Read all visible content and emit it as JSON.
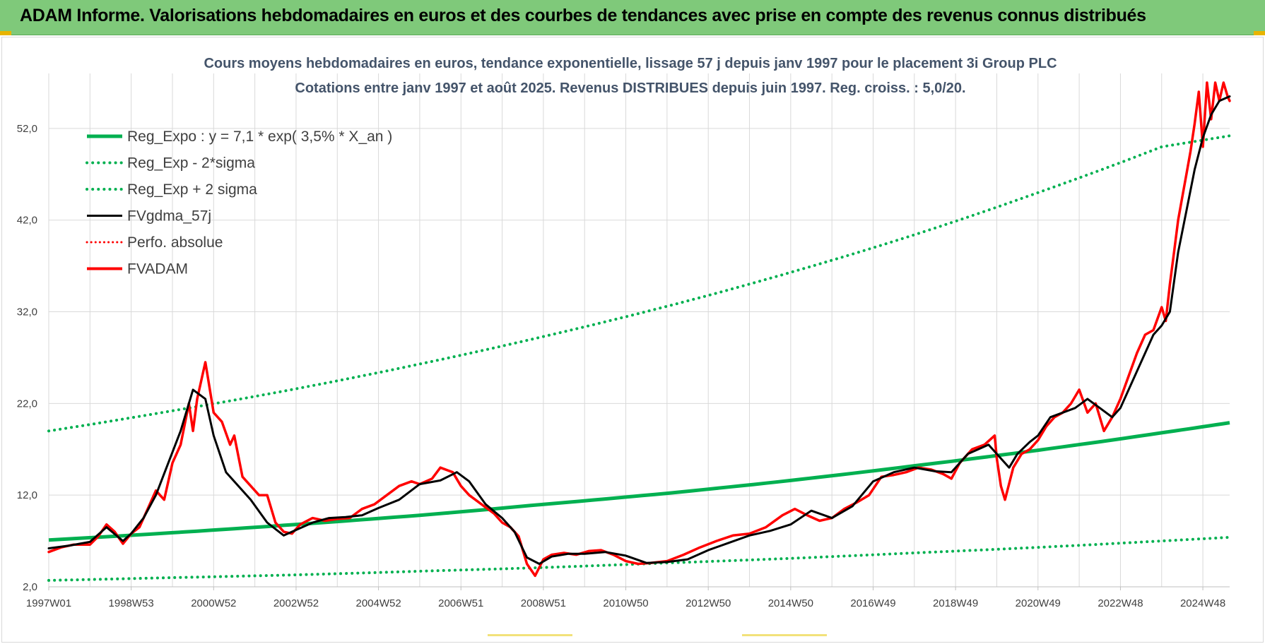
{
  "banner": {
    "title": "ADAM Informe. Valorisations hebdomadaires en euros et des courbes de tendances avec prise en compte des revenus connus distribués"
  },
  "colors": {
    "banner_bg": "#7fc97a",
    "reg_expo": "#00b050",
    "fvgdma": "#000000",
    "fvadam": "#ff0000",
    "perfo": "#ff0000",
    "grid": "#d9d9d9",
    "title": "#44546a"
  },
  "chart_data": {
    "type": "line",
    "title": [
      "Cours moyens hebdomadaires en euros, tendance exponentielle, lissage 57 j depuis janv 1997 pour le placement 3i Group PLC",
      "Cotations entre janv 1997 et août 2025. Revenus DISTRIBUES depuis juin 1997. Reg. croiss. : 5,0/20."
    ],
    "xlabel": "",
    "ylabel": "",
    "x_range": [
      1997.0,
      2025.65
    ],
    "ylim": [
      2,
      58
    ],
    "y_ticks": [
      2,
      12,
      22,
      32,
      42,
      52
    ],
    "y_tick_labels": [
      "2,0",
      "12,0",
      "22,0",
      "32,0",
      "42,0",
      "52,0"
    ],
    "x_ticks": [
      1997.0,
      1999.0,
      2001.0,
      2003.0,
      2005.0,
      2007.0,
      2009.0,
      2011.0,
      2013.0,
      2015.0,
      2017.0,
      2019.0,
      2021.0,
      2023.0,
      2025.0
    ],
    "x_tick_labels": [
      "1997W01",
      "1998W53",
      "2000W52",
      "2002W52",
      "2004W52",
      "2006W51",
      "2008W51",
      "2010W50",
      "2012W50",
      "2014W50",
      "2016W49",
      "2018W49",
      "2020W49",
      "2022W48",
      "2024W48"
    ],
    "grid": true,
    "legend_position": "top-left",
    "legend": [
      {
        "label": "Reg_Expo : y = 7,1 * exp( 3,5% *  X_an )",
        "style": "solid-thick",
        "color": "#00b050"
      },
      {
        "label": "Reg_Exp - 2*sigma",
        "style": "dotted",
        "color": "#00b050"
      },
      {
        "label": "Reg_Exp + 2 sigma",
        "style": "dotted",
        "color": "#00b050"
      },
      {
        "label": "FVgdma_57j",
        "style": "solid",
        "color": "#000000"
      },
      {
        "label": "Perfo. absolue",
        "style": "dotted",
        "color": "#ff0000"
      },
      {
        "label": "FVADAM",
        "style": "solid-thick",
        "color": "#ff0000"
      }
    ],
    "series": [
      {
        "name": "Reg_Expo : y = 7,1 * exp( 3,5% *  X_an )",
        "x": [
          1997.0,
          2000.0,
          2003.0,
          2006.0,
          2009.0,
          2012.0,
          2015.0,
          2018.0,
          2021.0,
          2024.0,
          2025.65
        ],
        "values": [
          7.1,
          7.9,
          8.8,
          9.8,
          11.0,
          12.2,
          13.6,
          15.2,
          16.9,
          18.8,
          19.9
        ]
      },
      {
        "name": "Reg_Exp - 2*sigma",
        "x": [
          1997.0,
          2000.0,
          2003.0,
          2006.0,
          2009.0,
          2012.0,
          2015.0,
          2018.0,
          2021.0,
          2024.0,
          2025.65
        ],
        "values": [
          2.7,
          3.0,
          3.3,
          3.7,
          4.1,
          4.6,
          5.1,
          5.7,
          6.3,
          7.0,
          7.4
        ]
      },
      {
        "name": "Reg_Exp + 2 sigma",
        "x": [
          1997.0,
          2000.0,
          2003.0,
          2006.0,
          2009.0,
          2012.0,
          2015.0,
          2018.0,
          2021.0,
          2024.0,
          2025.65
        ],
        "values": [
          19.0,
          21.2,
          23.6,
          26.3,
          29.3,
          32.6,
          36.3,
          40.4,
          45.0,
          50.0,
          51.2
        ]
      },
      {
        "name": "FVgdma_57j",
        "x": [
          1997.0,
          1997.5,
          1998.0,
          1998.4,
          1998.8,
          1999.0,
          1999.3,
          1999.6,
          1999.9,
          2000.2,
          2000.5,
          2000.8,
          2001.0,
          2001.3,
          2001.6,
          2001.9,
          2002.3,
          2002.7,
          2003.0,
          2003.4,
          2003.8,
          2004.2,
          2004.6,
          2005.0,
          2005.5,
          2006.0,
          2006.5,
          2006.9,
          2007.2,
          2007.6,
          2008.0,
          2008.3,
          2008.6,
          2008.9,
          2009.2,
          2009.6,
          2010.0,
          2010.5,
          2011.0,
          2011.5,
          2012.0,
          2012.5,
          2013.0,
          2013.5,
          2014.0,
          2014.5,
          2015.0,
          2015.5,
          2016.0,
          2016.5,
          2017.0,
          2017.5,
          2018.0,
          2018.5,
          2018.9,
          2019.3,
          2019.8,
          2020.1,
          2020.3,
          2020.5,
          2020.8,
          2021.0,
          2021.3,
          2021.6,
          2021.9,
          2022.2,
          2022.5,
          2022.8,
          2023.0,
          2023.3,
          2023.6,
          2023.8,
          2024.0,
          2024.2,
          2024.4,
          2024.6,
          2024.8,
          2025.0,
          2025.2,
          2025.4,
          2025.65
        ],
        "values": [
          6.2,
          6.5,
          6.9,
          8.5,
          7.0,
          7.8,
          9.5,
          12.0,
          15.5,
          19.0,
          23.5,
          22.5,
          18.5,
          14.5,
          13.0,
          11.5,
          9.0,
          7.6,
          8.2,
          9.0,
          9.5,
          9.6,
          9.8,
          10.6,
          11.5,
          13.2,
          13.6,
          14.5,
          13.5,
          11.0,
          9.5,
          8.0,
          5.2,
          4.5,
          5.3,
          5.6,
          5.6,
          5.8,
          5.4,
          4.6,
          4.7,
          5.0,
          6.0,
          6.8,
          7.6,
          8.1,
          8.8,
          10.3,
          9.5,
          10.8,
          13.5,
          14.5,
          15.0,
          14.6,
          14.5,
          16.5,
          17.5,
          16.0,
          15.0,
          16.5,
          17.8,
          18.5,
          20.5,
          21.0,
          21.5,
          22.5,
          21.5,
          20.5,
          21.5,
          24.5,
          27.5,
          29.5,
          30.5,
          32.0,
          38.5,
          43.0,
          47.5,
          51.0,
          53.5,
          55.0,
          55.5
        ]
      },
      {
        "name": "FVADAM",
        "x": [
          1997.0,
          1997.3,
          1997.6,
          1998.0,
          1998.2,
          1998.4,
          1998.6,
          1998.8,
          1999.0,
          1999.2,
          1999.4,
          1999.6,
          1999.8,
          2000.0,
          2000.2,
          2000.4,
          2000.5,
          2000.6,
          2000.8,
          2001.0,
          2001.2,
          2001.4,
          2001.5,
          2001.7,
          2001.9,
          2002.1,
          2002.3,
          2002.5,
          2002.7,
          2002.9,
          2003.1,
          2003.4,
          2003.7,
          2004.0,
          2004.3,
          2004.6,
          2004.9,
          2005.2,
          2005.5,
          2005.8,
          2006.0,
          2006.3,
          2006.5,
          2006.8,
          2007.0,
          2007.2,
          2007.5,
          2007.8,
          2008.0,
          2008.2,
          2008.4,
          2008.6,
          2008.8,
          2009.0,
          2009.2,
          2009.5,
          2009.8,
          2010.1,
          2010.4,
          2010.7,
          2011.0,
          2011.3,
          2011.6,
          2012.0,
          2012.4,
          2012.8,
          2013.2,
          2013.6,
          2014.0,
          2014.4,
          2014.8,
          2015.1,
          2015.4,
          2015.7,
          2016.0,
          2016.3,
          2016.6,
          2016.9,
          2017.2,
          2017.5,
          2017.8,
          2018.1,
          2018.4,
          2018.7,
          2018.9,
          2019.1,
          2019.4,
          2019.7,
          2019.95,
          2020.0,
          2020.1,
          2020.2,
          2020.4,
          2020.6,
          2020.8,
          2021.0,
          2021.2,
          2021.4,
          2021.6,
          2021.8,
          2022.0,
          2022.2,
          2022.4,
          2022.6,
          2022.8,
          2023.0,
          2023.2,
          2023.4,
          2023.6,
          2023.8,
          2024.0,
          2024.1,
          2024.2,
          2024.3,
          2024.4,
          2024.5,
          2024.6,
          2024.7,
          2024.8,
          2024.9,
          2025.0,
          2025.1,
          2025.2,
          2025.3,
          2025.4,
          2025.5,
          2025.6,
          2025.65
        ],
        "values": [
          5.8,
          6.3,
          6.6,
          6.6,
          7.5,
          8.8,
          8.0,
          6.7,
          7.8,
          8.5,
          10.5,
          12.5,
          11.5,
          15.5,
          17.5,
          22.0,
          19.0,
          22.5,
          26.5,
          21.0,
          20.0,
          17.5,
          18.5,
          14.0,
          13.0,
          12.0,
          12.0,
          9.0,
          8.0,
          7.8,
          8.8,
          9.5,
          9.2,
          9.4,
          9.5,
          10.5,
          11.0,
          12.0,
          13.0,
          13.5,
          13.2,
          13.8,
          15.0,
          14.5,
          13.0,
          12.0,
          11.0,
          10.0,
          9.0,
          8.5,
          7.5,
          4.5,
          3.2,
          5.0,
          5.5,
          5.7,
          5.5,
          5.9,
          6.0,
          5.5,
          4.8,
          4.5,
          4.6,
          4.8,
          5.5,
          6.3,
          7.0,
          7.6,
          7.8,
          8.5,
          9.8,
          10.5,
          9.8,
          9.2,
          9.5,
          10.5,
          11.2,
          12.0,
          14.0,
          14.2,
          14.5,
          15.0,
          14.8,
          14.3,
          13.8,
          15.5,
          17.0,
          17.5,
          18.5,
          16.0,
          13.0,
          11.5,
          15.0,
          16.5,
          17.0,
          18.0,
          19.5,
          20.5,
          21.0,
          22.0,
          23.5,
          21.0,
          22.0,
          19.0,
          20.5,
          22.5,
          25.0,
          27.5,
          29.5,
          30.0,
          32.5,
          31.0,
          35.0,
          38.5,
          42.0,
          44.5,
          47.0,
          49.5,
          52.5,
          56.0,
          50.0,
          57.0,
          53.0,
          57.0,
          55.0,
          57.0,
          55.5,
          55.0
        ]
      }
    ]
  }
}
